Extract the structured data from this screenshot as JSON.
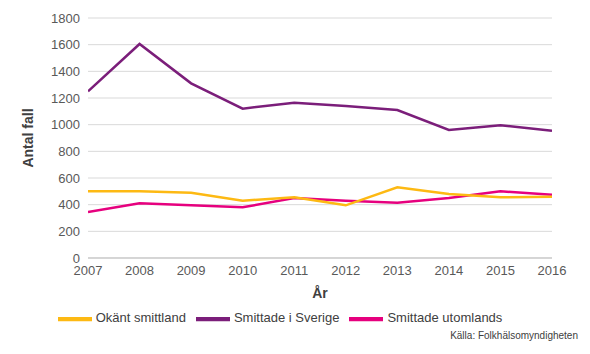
{
  "chart_data": {
    "type": "line",
    "x_label": "År",
    "y_label": "Antal fall",
    "source": "Källa: Folkhälsomyndigheten",
    "x": [
      2007,
      2008,
      2009,
      2010,
      2011,
      2012,
      2013,
      2014,
      2015,
      2016
    ],
    "series": [
      {
        "name": "Smittade i Sverige",
        "color": "#7b1e7a",
        "values": [
          1250,
          1605,
          1310,
          1120,
          1165,
          1140,
          1110,
          960,
          995,
          955
        ]
      },
      {
        "name": "Smittade utomlands",
        "color": "#e6007e",
        "values": [
          345,
          410,
          395,
          380,
          450,
          430,
          415,
          450,
          500,
          475
        ]
      },
      {
        "name": "Okänt smittland",
        "color": "#fdb913",
        "values": [
          500,
          500,
          490,
          430,
          455,
          395,
          530,
          480,
          455,
          460
        ]
      }
    ],
    "xlim": [
      2007,
      2016
    ],
    "xticks": [
      2007,
      2008,
      2009,
      2010,
      2011,
      2012,
      2013,
      2014,
      2015,
      2016
    ],
    "ylim": [
      0,
      1800
    ],
    "yticks": [
      0,
      200,
      400,
      600,
      800,
      1000,
      1200,
      1400,
      1600,
      1800
    ],
    "grid": true,
    "legend": "bottom"
  }
}
